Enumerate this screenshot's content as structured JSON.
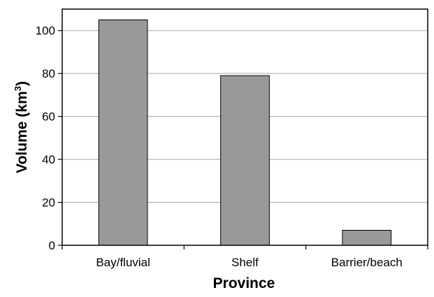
{
  "chart_data": {
    "type": "bar",
    "title": "",
    "xlabel": "Province",
    "ylabel_main": "Volume (km",
    "ylabel_sup": "3",
    "ylabel_end": ")",
    "categories": [
      "Bay/fluvial",
      "Shelf",
      "Barrier/beach"
    ],
    "values": [
      105,
      79,
      7
    ],
    "ylim": [
      0,
      110
    ],
    "yticks": [
      0,
      20,
      40,
      60,
      80,
      100
    ],
    "grid": true,
    "colors": {
      "bar": "#999999",
      "bar_stroke": "#000000",
      "grid": "#a6a6a6",
      "axis": "#000000"
    }
  }
}
